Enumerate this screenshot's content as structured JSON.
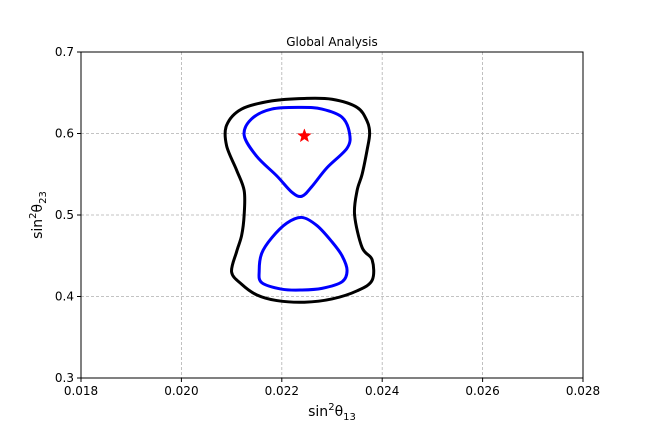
{
  "chart_data": {
    "type": "line",
    "title": "Global Analysis",
    "xlabel": {
      "base": "sin",
      "sup": "2",
      "symbol": "θ",
      "sub": "13"
    },
    "ylabel": {
      "base": "sin",
      "sup": "2",
      "symbol": "θ",
      "sub": "23"
    },
    "xlim": [
      0.018,
      0.028
    ],
    "ylim": [
      0.3,
      0.7
    ],
    "xticks": [
      "0.018",
      "0.020",
      "0.022",
      "0.024",
      "0.026",
      "0.028"
    ],
    "yticks": [
      "0.3",
      "0.4",
      "0.5",
      "0.6",
      "0.7"
    ],
    "xtick_values": [
      0.018,
      0.02,
      0.022,
      0.024,
      0.026,
      0.028
    ],
    "ytick_values": [
      0.3,
      0.4,
      0.5,
      0.6,
      0.7
    ],
    "grid": true,
    "series": [
      {
        "color": "#000000",
        "values": [
          {
            "x": 0.02245,
            "y": 0.643
          },
          {
            "x": 0.023,
            "y": 0.642
          },
          {
            "x": 0.0235,
            "y": 0.632
          },
          {
            "x": 0.0237,
            "y": 0.615
          },
          {
            "x": 0.02375,
            "y": 0.6
          },
          {
            "x": 0.0237,
            "y": 0.58
          },
          {
            "x": 0.0236,
            "y": 0.55
          },
          {
            "x": 0.0235,
            "y": 0.53
          },
          {
            "x": 0.02345,
            "y": 0.5
          },
          {
            "x": 0.0236,
            "y": 0.46
          },
          {
            "x": 0.0238,
            "y": 0.445
          },
          {
            "x": 0.0238,
            "y": 0.42
          },
          {
            "x": 0.0235,
            "y": 0.407
          },
          {
            "x": 0.023,
            "y": 0.397
          },
          {
            "x": 0.02245,
            "y": 0.393
          },
          {
            "x": 0.0219,
            "y": 0.395
          },
          {
            "x": 0.0215,
            "y": 0.402
          },
          {
            "x": 0.0212,
            "y": 0.415
          },
          {
            "x": 0.021,
            "y": 0.43
          },
          {
            "x": 0.0211,
            "y": 0.455
          },
          {
            "x": 0.0212,
            "y": 0.475
          },
          {
            "x": 0.02125,
            "y": 0.5
          },
          {
            "x": 0.02125,
            "y": 0.53
          },
          {
            "x": 0.0211,
            "y": 0.555
          },
          {
            "x": 0.0209,
            "y": 0.585
          },
          {
            "x": 0.0209,
            "y": 0.61
          },
          {
            "x": 0.0212,
            "y": 0.63
          },
          {
            "x": 0.0218,
            "y": 0.64
          },
          {
            "x": 0.02245,
            "y": 0.643
          }
        ]
      },
      {
        "color": "#0000ff",
        "values": [
          {
            "x": 0.0224,
            "y": 0.632
          },
          {
            "x": 0.0228,
            "y": 0.63
          },
          {
            "x": 0.0232,
            "y": 0.62
          },
          {
            "x": 0.02335,
            "y": 0.6
          },
          {
            "x": 0.0233,
            "y": 0.582
          },
          {
            "x": 0.0229,
            "y": 0.558
          },
          {
            "x": 0.0226,
            "y": 0.535
          },
          {
            "x": 0.0224,
            "y": 0.523
          },
          {
            "x": 0.0222,
            "y": 0.528
          },
          {
            "x": 0.0219,
            "y": 0.548
          },
          {
            "x": 0.0215,
            "y": 0.572
          },
          {
            "x": 0.02125,
            "y": 0.598
          },
          {
            "x": 0.0214,
            "y": 0.618
          },
          {
            "x": 0.0218,
            "y": 0.63
          },
          {
            "x": 0.0224,
            "y": 0.632
          }
        ]
      },
      {
        "color": "#0000ff",
        "values": [
          {
            "x": 0.0224,
            "y": 0.497
          },
          {
            "x": 0.0227,
            "y": 0.487
          },
          {
            "x": 0.023,
            "y": 0.467
          },
          {
            "x": 0.0232,
            "y": 0.45
          },
          {
            "x": 0.0233,
            "y": 0.432
          },
          {
            "x": 0.0232,
            "y": 0.418
          },
          {
            "x": 0.0228,
            "y": 0.41
          },
          {
            "x": 0.0224,
            "y": 0.408
          },
          {
            "x": 0.022,
            "y": 0.409
          },
          {
            "x": 0.0216,
            "y": 0.417
          },
          {
            "x": 0.02155,
            "y": 0.432
          },
          {
            "x": 0.0216,
            "y": 0.453
          },
          {
            "x": 0.0218,
            "y": 0.472
          },
          {
            "x": 0.0221,
            "y": 0.49
          },
          {
            "x": 0.0224,
            "y": 0.497
          }
        ]
      }
    ],
    "markers": [
      {
        "symbol": "star",
        "color": "#ff0000",
        "x": 0.02245,
        "y": 0.597
      }
    ]
  }
}
